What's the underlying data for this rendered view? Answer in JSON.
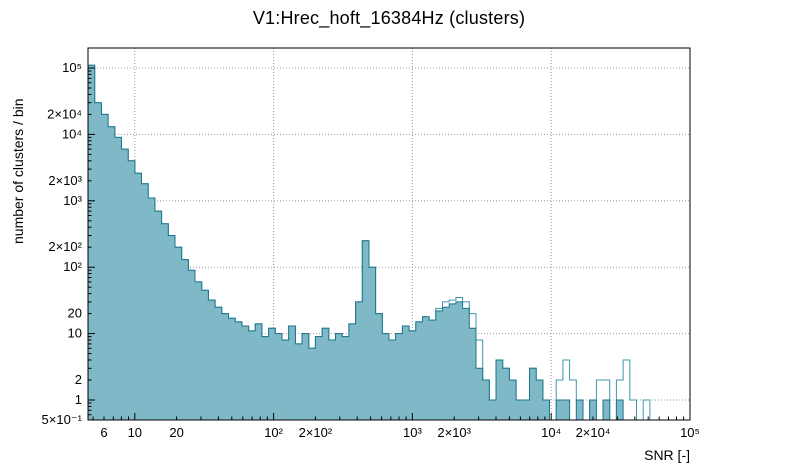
{
  "chart_data": {
    "type": "bar",
    "render": "log-log step histogram (ROOT style)",
    "title": "V1:Hrec_hoft_16384Hz (clusters)",
    "xlabel": "SNR [-]",
    "ylabel": "number of clusters / bin",
    "xscale": "log",
    "yscale": "log",
    "xlim": [
      4.6,
      100000
    ],
    "ylim": [
      0.5,
      200000
    ],
    "grid": true,
    "grid_color": "#999999",
    "frame_color": "#000000",
    "x_ticks": [
      {
        "v": 6,
        "label": "6"
      },
      {
        "v": 10,
        "label": "10"
      },
      {
        "v": 20,
        "label": "20"
      },
      {
        "v": 100,
        "label": "10²"
      },
      {
        "v": 200,
        "label": "2×10²"
      },
      {
        "v": 1000,
        "label": "10³"
      },
      {
        "v": 2000,
        "label": "2×10³"
      },
      {
        "v": 10000,
        "label": "10⁴"
      },
      {
        "v": 20000,
        "label": "2×10⁴"
      },
      {
        "v": 100000,
        "label": "10⁵"
      }
    ],
    "y_ticks": [
      {
        "v": 0.5,
        "label": "5×10⁻¹"
      },
      {
        "v": 1,
        "label": "1"
      },
      {
        "v": 2,
        "label": "2"
      },
      {
        "v": 10,
        "label": "10"
      },
      {
        "v": 20,
        "label": "20"
      },
      {
        "v": 100,
        "label": "10²"
      },
      {
        "v": 200,
        "label": "2×10²"
      },
      {
        "v": 1000,
        "label": "10³"
      },
      {
        "v": 2000,
        "label": "2×10³"
      },
      {
        "v": 10000,
        "label": "10⁴"
      },
      {
        "v": 20000,
        "label": "2×10⁴"
      },
      {
        "v": 100000,
        "label": "10⁵"
      }
    ],
    "grid_x": [
      10,
      100,
      1000,
      10000,
      100000
    ],
    "grid_y": [
      1,
      10,
      100,
      1000,
      10000,
      100000
    ],
    "bins": {
      "log_min": 0.663,
      "log_max": 5.0,
      "count": 90
    },
    "series": [
      {
        "name": "open",
        "fill": "#ffffff",
        "stroke": "#3c97ac",
        "values": [
          110000,
          30000,
          20000,
          13000,
          9000,
          6000,
          4000,
          2600,
          1800,
          1100,
          700,
          450,
          300,
          200,
          130,
          90,
          60,
          45,
          32,
          25,
          20,
          17,
          15,
          13,
          11,
          14,
          9,
          12,
          10,
          8,
          13,
          7,
          10,
          6,
          9,
          12,
          8,
          10,
          9,
          14,
          30,
          250,
          100,
          20,
          10,
          8,
          10,
          13,
          11,
          15,
          18,
          16,
          24,
          30,
          32,
          35,
          30,
          20,
          8,
          2,
          1,
          4,
          3,
          2,
          1,
          1,
          3,
          2,
          1,
          0,
          2,
          4,
          2,
          1,
          0,
          1,
          2,
          2,
          0,
          2,
          4,
          1,
          0,
          1,
          0,
          0,
          0,
          0,
          0,
          0
        ]
      },
      {
        "name": "filled",
        "fill": "#7fb9c8",
        "stroke": "#19758b",
        "values": [
          110000,
          30000,
          20000,
          13000,
          9000,
          6000,
          4000,
          2600,
          1800,
          1100,
          700,
          450,
          300,
          200,
          130,
          90,
          60,
          45,
          32,
          25,
          20,
          17,
          15,
          13,
          11,
          14,
          9,
          12,
          10,
          8,
          13,
          7,
          10,
          6,
          9,
          12,
          8,
          10,
          9,
          14,
          30,
          250,
          100,
          20,
          10,
          8,
          10,
          13,
          11,
          15,
          18,
          16,
          22,
          25,
          28,
          30,
          24,
          12,
          3,
          2,
          1,
          4,
          3,
          2,
          1,
          1,
          3,
          2,
          1,
          0,
          1,
          1,
          0,
          1,
          0,
          1,
          0,
          1,
          0,
          1,
          0,
          0,
          0,
          0,
          0,
          0,
          0,
          0,
          0,
          0
        ]
      }
    ]
  }
}
